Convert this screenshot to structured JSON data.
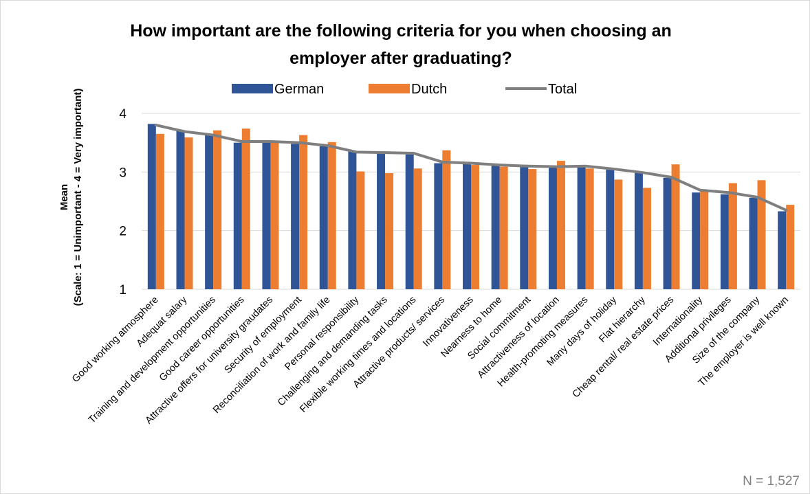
{
  "chart_data": {
    "type": "bar",
    "title_line1": "How important are the following criteria for you when choosing an",
    "title_line2": "employer after graduating?",
    "ylabel_line1": "Mean",
    "ylabel_line2": "(Scale: 1 = Unimportant - 4 = Very important)",
    "xlabel": "",
    "ylim": [
      1,
      4
    ],
    "yticks": [
      1,
      2,
      3,
      4
    ],
    "grid": true,
    "legend_position": "top",
    "note": "N = 1,527",
    "categories": [
      "Good working atmosphere",
      "Adequat salary",
      "Training and development opportunities",
      "Good career opportunities",
      "Attractive offers for university graudates",
      "Security of employment",
      "Reconciliation of work and family life",
      "Personal responsibility",
      "Challenging and demanding tasks",
      "Flexible working times and locations",
      "Attractive products/ services",
      "Innovativeness",
      "Nearness to home",
      "Social commitment",
      "Attractiveness of location",
      "Health-promoting measures",
      "Many days of holiday",
      "Flat hierarchy",
      "Cheap rental/ real estate prices",
      "Internationality",
      "Additional privileges",
      "Size of the company",
      "The employer is well known"
    ],
    "series": [
      {
        "name": "German",
        "kind": "bar",
        "color": "#2F5597",
        "values": [
          3.82,
          3.7,
          3.63,
          3.5,
          3.52,
          3.48,
          3.44,
          3.35,
          3.35,
          3.3,
          3.15,
          3.15,
          3.12,
          3.1,
          3.07,
          3.11,
          3.04,
          3.0,
          2.9,
          2.65,
          2.62,
          2.56,
          2.33
        ]
      },
      {
        "name": "Dutch",
        "kind": "bar",
        "color": "#ED7D31",
        "values": [
          3.65,
          3.59,
          3.71,
          3.74,
          3.51,
          3.63,
          3.51,
          3.01,
          2.98,
          3.06,
          3.37,
          3.12,
          3.09,
          3.05,
          3.19,
          3.06,
          2.87,
          2.73,
          3.13,
          2.69,
          2.81,
          2.86,
          2.44
        ]
      },
      {
        "name": "Total",
        "kind": "line",
        "color": "#7F7F7F",
        "values": [
          3.8,
          3.69,
          3.63,
          3.52,
          3.52,
          3.5,
          3.45,
          3.34,
          3.33,
          3.32,
          3.17,
          3.15,
          3.12,
          3.1,
          3.09,
          3.1,
          3.05,
          2.99,
          2.91,
          2.69,
          2.65,
          2.57,
          2.35
        ]
      }
    ]
  }
}
